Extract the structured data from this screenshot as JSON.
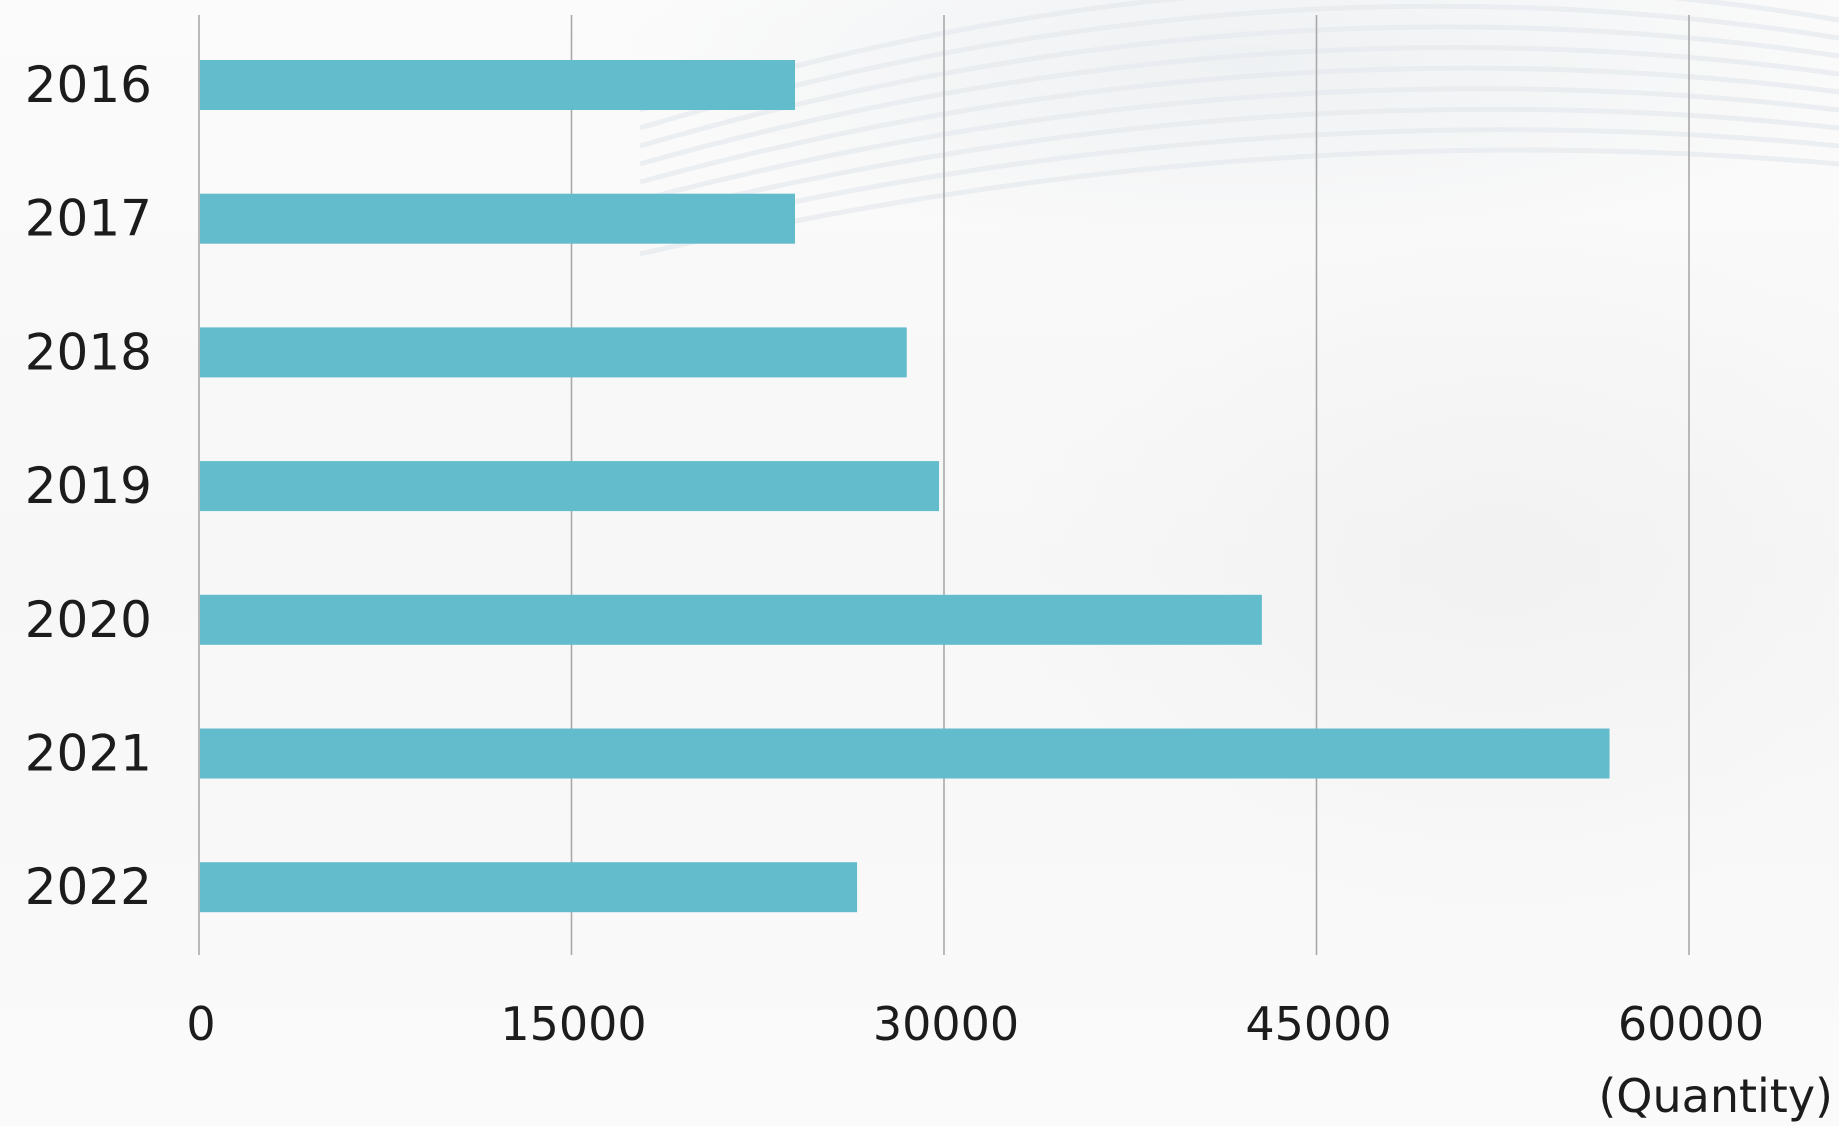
{
  "chart_data": {
    "type": "bar",
    "orientation": "horizontal",
    "categories": [
      "2016",
      "2017",
      "2018",
      "2019",
      "2020",
      "2021",
      "2022"
    ],
    "values": [
      24000,
      24000,
      28500,
      29800,
      42800,
      56800,
      26500
    ],
    "title": "",
    "xlabel": "(Quantity)",
    "ylabel": "",
    "xlim": [
      0,
      60000
    ],
    "xticks": [
      "0",
      "15000",
      "30000",
      "45000",
      "60000"
    ],
    "grid": "vertical",
    "bar_color": "#62bccc",
    "gridline_color": "#a9a9a9"
  }
}
